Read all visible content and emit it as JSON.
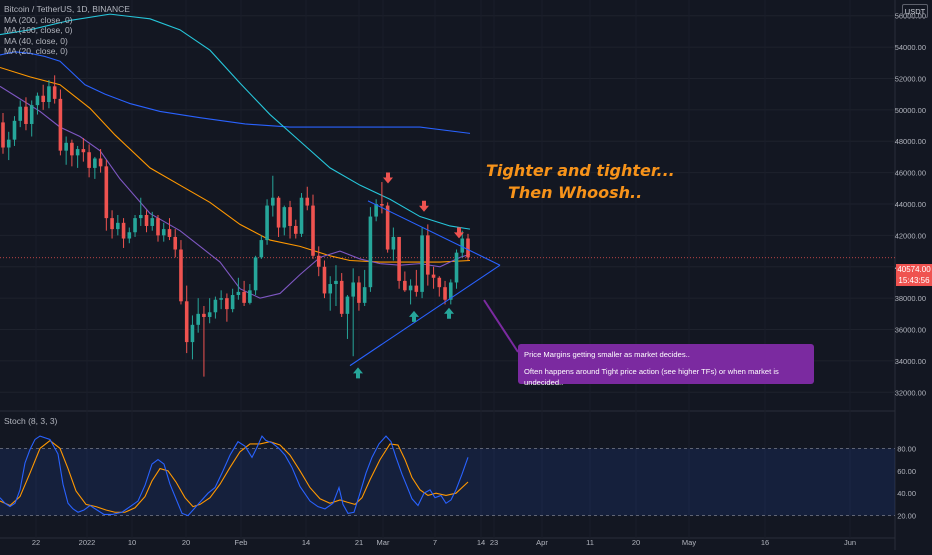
{
  "legend": {
    "symbol": "Bitcoin / TetherUS, 1D, BINANCE",
    "ma200": "MA (200, close, 0)",
    "ma100": "MA (100, close, 0)",
    "ma40": "MA (40, close, 0)",
    "ma20": "MA (20, close, 0)"
  },
  "currency_button": "USDT",
  "annotations": {
    "headline_line1": "Tighter and tighter...",
    "headline_line2": "Then Whoosh..",
    "note_line1": "Price Margins getting smaller as market decides..",
    "note_line2": "Often happens around Tight price action (see higher TFs) or when market is undecided.."
  },
  "last_price": {
    "value": "40574.00",
    "countdown": "15:43:56"
  },
  "stoch_label": "Stoch (8, 3, 3)",
  "colors": {
    "background": "#131722",
    "up": "#26a69a",
    "down": "#ef5350",
    "ma200": "#2962ff",
    "ma100": "#26c6da",
    "ma40": "#ff9800",
    "ma20": "#7e57c2",
    "stoch_k": "#2962ff",
    "stoch_d": "#ff9800",
    "trendline": "#2962ff",
    "note": "#7b2aa0",
    "headline": "#f7931a"
  },
  "chart_data": {
    "type": "candlestick",
    "title": "Bitcoin / TetherUS, 1D, BINANCE",
    "y_ticks": [
      32000,
      34000,
      36000,
      38000,
      40000,
      42000,
      44000,
      46000,
      48000,
      50000,
      52000,
      54000,
      56000
    ],
    "ylim": [
      31000,
      57000
    ],
    "x_ticks": [
      "22",
      "2022",
      "10",
      "20",
      "Feb",
      "14",
      "21",
      "Mar",
      "7",
      "14",
      "23",
      "Apr",
      "11",
      "20",
      "May",
      "16",
      "Jun"
    ],
    "candles_ohlc": [
      [
        49200,
        49800,
        47200,
        47600
      ],
      [
        47600,
        48600,
        46800,
        48100
      ],
      [
        48100,
        49600,
        47700,
        49300
      ],
      [
        49300,
        50600,
        48900,
        50200
      ],
      [
        50200,
        50800,
        48700,
        49100
      ],
      [
        49100,
        50600,
        48300,
        50300
      ],
      [
        50300,
        51100,
        49700,
        50900
      ],
      [
        50900,
        51600,
        50000,
        50500
      ],
      [
        50500,
        51900,
        50100,
        51500
      ],
      [
        51500,
        52200,
        50400,
        50700
      ],
      [
        50700,
        51300,
        47100,
        47400
      ],
      [
        47400,
        48300,
        46500,
        47900
      ],
      [
        47900,
        48100,
        46400,
        47100
      ],
      [
        47100,
        47700,
        46300,
        47500
      ],
      [
        47500,
        48200,
        46700,
        47300
      ],
      [
        47300,
        47800,
        45700,
        46300
      ],
      [
        46300,
        47000,
        45600,
        46900
      ],
      [
        46900,
        47500,
        46000,
        46400
      ],
      [
        46400,
        46800,
        42300,
        43100
      ],
      [
        43100,
        43600,
        41800,
        42400
      ],
      [
        42400,
        43300,
        42000,
        42800
      ],
      [
        42800,
        43100,
        41200,
        41800
      ],
      [
        41800,
        42500,
        41500,
        42200
      ],
      [
        42200,
        43300,
        41900,
        43100
      ],
      [
        43100,
        44400,
        42600,
        43300
      ],
      [
        43300,
        43600,
        42200,
        42600
      ],
      [
        42600,
        43500,
        42300,
        43100
      ],
      [
        43100,
        43300,
        41600,
        42000
      ],
      [
        42000,
        42800,
        41600,
        42400
      ],
      [
        42400,
        43100,
        41700,
        41900
      ],
      [
        41900,
        42400,
        40600,
        41100
      ],
      [
        41100,
        41700,
        37600,
        37800
      ],
      [
        37800,
        38800,
        34500,
        35200
      ],
      [
        35200,
        36900,
        34100,
        36300
      ],
      [
        36300,
        38000,
        35800,
        37000
      ],
      [
        37000,
        37500,
        33000,
        36800
      ],
      [
        36800,
        38000,
        36400,
        37100
      ],
      [
        37100,
        38100,
        36700,
        37900
      ],
      [
        37900,
        38500,
        37300,
        38000
      ],
      [
        38000,
        38300,
        36500,
        37300
      ],
      [
        37300,
        38600,
        37100,
        38200
      ],
      [
        38200,
        39300,
        37900,
        38400
      ],
      [
        38400,
        39100,
        37500,
        37700
      ],
      [
        37700,
        38900,
        37600,
        38500
      ],
      [
        38500,
        40700,
        38200,
        40600
      ],
      [
        40600,
        42000,
        40500,
        41700
      ],
      [
        41700,
        44300,
        41400,
        43900
      ],
      [
        43900,
        45800,
        43200,
        44400
      ],
      [
        44400,
        44500,
        41900,
        42500
      ],
      [
        42500,
        43900,
        42000,
        43800
      ],
      [
        43800,
        44200,
        41800,
        42600
      ],
      [
        42600,
        43000,
        41800,
        42100
      ],
      [
        42100,
        44700,
        41900,
        44400
      ],
      [
        44400,
        45100,
        43600,
        43900
      ],
      [
        43900,
        44600,
        40500,
        40700
      ],
      [
        40700,
        41300,
        39400,
        40000
      ],
      [
        40000,
        40400,
        38000,
        38300
      ],
      [
        38300,
        39400,
        37200,
        38900
      ],
      [
        38900,
        40100,
        37500,
        39100
      ],
      [
        39100,
        39600,
        36800,
        37000
      ],
      [
        37000,
        38200,
        35400,
        38100
      ],
      [
        38100,
        39900,
        34300,
        39000
      ],
      [
        39000,
        39400,
        37200,
        37700
      ],
      [
        37700,
        39800,
        37500,
        38700
      ],
      [
        38700,
        43800,
        38400,
        43200
      ],
      [
        43200,
        44300,
        42900,
        44000
      ],
      [
        44000,
        45400,
        43400,
        43900
      ],
      [
        43900,
        44100,
        40900,
        41100
      ],
      [
        41100,
        42500,
        40400,
        41900
      ],
      [
        41900,
        41900,
        38600,
        39100
      ],
      [
        39100,
        39700,
        38400,
        38500
      ],
      [
        38500,
        39200,
        37600,
        38800
      ],
      [
        38800,
        39800,
        38100,
        38400
      ],
      [
        38400,
        42500,
        38000,
        42000
      ],
      [
        42000,
        42700,
        38800,
        39500
      ],
      [
        39500,
        40000,
        38600,
        39300
      ],
      [
        39300,
        39400,
        38100,
        38700
      ],
      [
        38700,
        39100,
        37600,
        37900
      ],
      [
        37900,
        39200,
        37600,
        39000
      ],
      [
        39000,
        41100,
        38600,
        40900
      ],
      [
        40900,
        42300,
        40600,
        41800
      ],
      [
        41800,
        42100,
        40400,
        40600
      ]
    ],
    "ma200": [
      [
        0,
        53500
      ],
      [
        15,
        53700
      ],
      [
        30,
        53600
      ],
      [
        45,
        53400
      ],
      [
        60,
        53100
      ],
      [
        70,
        52500
      ],
      [
        85,
        51600
      ],
      [
        105,
        51000
      ],
      [
        130,
        50400
      ],
      [
        160,
        49900
      ],
      [
        200,
        49500
      ],
      [
        245,
        49100
      ],
      [
        290,
        48900
      ],
      [
        330,
        48900
      ],
      [
        380,
        48900
      ],
      [
        420,
        48900
      ],
      [
        470,
        48500
      ]
    ],
    "ma100": [
      [
        0,
        54800
      ],
      [
        30,
        55100
      ],
      [
        70,
        55700
      ],
      [
        110,
        56100
      ],
      [
        150,
        55800
      ],
      [
        180,
        55100
      ],
      [
        210,
        53800
      ],
      [
        240,
        51700
      ],
      [
        270,
        49700
      ],
      [
        300,
        48000
      ],
      [
        330,
        46300
      ],
      [
        360,
        45200
      ],
      [
        390,
        44300
      ],
      [
        420,
        43200
      ],
      [
        450,
        42600
      ],
      [
        470,
        42400
      ]
    ],
    "ma40": [
      [
        0,
        52700
      ],
      [
        30,
        52100
      ],
      [
        60,
        51600
      ],
      [
        90,
        50100
      ],
      [
        115,
        48400
      ],
      [
        150,
        46300
      ],
      [
        180,
        45200
      ],
      [
        210,
        44100
      ],
      [
        240,
        42700
      ],
      [
        270,
        41700
      ],
      [
        300,
        41300
      ],
      [
        330,
        40700
      ],
      [
        350,
        40400
      ],
      [
        380,
        40300
      ],
      [
        410,
        40300
      ],
      [
        440,
        40300
      ],
      [
        470,
        40400
      ]
    ],
    "ma20": [
      [
        0,
        51500
      ],
      [
        20,
        50700
      ],
      [
        40,
        49900
      ],
      [
        60,
        48900
      ],
      [
        80,
        48300
      ],
      [
        100,
        47400
      ],
      [
        120,
        45600
      ],
      [
        150,
        43400
      ],
      [
        180,
        42300
      ],
      [
        200,
        41300
      ],
      [
        220,
        40300
      ],
      [
        240,
        38600
      ],
      [
        260,
        38000
      ],
      [
        280,
        38300
      ],
      [
        300,
        39500
      ],
      [
        320,
        40600
      ],
      [
        340,
        41000
      ],
      [
        360,
        40500
      ],
      [
        380,
        40200
      ],
      [
        400,
        40100
      ],
      [
        420,
        40200
      ],
      [
        440,
        40000
      ],
      [
        460,
        40600
      ],
      [
        470,
        40800
      ]
    ],
    "stoch_k": [
      [
        0,
        36
      ],
      [
        5,
        31
      ],
      [
        10,
        28
      ],
      [
        15,
        31
      ],
      [
        20,
        43
      ],
      [
        25,
        67
      ],
      [
        30,
        79
      ],
      [
        35,
        88
      ],
      [
        40,
        91
      ],
      [
        50,
        88
      ],
      [
        58,
        75
      ],
      [
        63,
        48
      ],
      [
        68,
        31
      ],
      [
        73,
        26
      ],
      [
        78,
        23
      ],
      [
        84,
        25
      ],
      [
        90,
        29
      ],
      [
        97,
        25
      ],
      [
        104,
        21
      ],
      [
        112,
        21
      ],
      [
        122,
        23
      ],
      [
        130,
        28
      ],
      [
        138,
        33
      ],
      [
        145,
        47
      ],
      [
        152,
        66
      ],
      [
        158,
        70
      ],
      [
        164,
        66
      ],
      [
        170,
        48
      ],
      [
        176,
        35
      ],
      [
        182,
        22
      ],
      [
        188,
        20
      ],
      [
        193,
        25
      ],
      [
        200,
        32
      ],
      [
        208,
        40
      ],
      [
        215,
        45
      ],
      [
        222,
        58
      ],
      [
        230,
        74
      ],
      [
        238,
        86
      ],
      [
        245,
        82
      ],
      [
        252,
        72
      ],
      [
        257,
        81
      ],
      [
        262,
        91
      ],
      [
        266,
        87
      ],
      [
        272,
        85
      ],
      [
        279,
        80
      ],
      [
        285,
        74
      ],
      [
        292,
        63
      ],
      [
        300,
        46
      ],
      [
        310,
        33
      ],
      [
        318,
        28
      ],
      [
        325,
        26
      ],
      [
        333,
        31
      ],
      [
        339,
        45
      ],
      [
        343,
        30
      ],
      [
        348,
        22
      ],
      [
        354,
        23
      ],
      [
        360,
        40
      ],
      [
        366,
        58
      ],
      [
        372,
        72
      ],
      [
        379,
        84
      ],
      [
        386,
        91
      ],
      [
        391,
        86
      ],
      [
        396,
        72
      ],
      [
        402,
        57
      ],
      [
        407,
        46
      ],
      [
        412,
        35
      ],
      [
        418,
        29
      ],
      [
        424,
        40
      ],
      [
        430,
        43
      ],
      [
        435,
        36
      ],
      [
        441,
        38
      ],
      [
        446,
        31
      ],
      [
        451,
        34
      ],
      [
        456,
        43
      ],
      [
        462,
        57
      ],
      [
        468,
        72
      ]
    ],
    "stoch_d": [
      [
        0,
        33
      ],
      [
        10,
        29
      ],
      [
        20,
        37
      ],
      [
        30,
        58
      ],
      [
        40,
        80
      ],
      [
        50,
        87
      ],
      [
        60,
        80
      ],
      [
        68,
        62
      ],
      [
        76,
        42
      ],
      [
        86,
        30
      ],
      [
        96,
        28
      ],
      [
        106,
        25
      ],
      [
        115,
        23
      ],
      [
        125,
        23
      ],
      [
        135,
        27
      ],
      [
        145,
        37
      ],
      [
        152,
        51
      ],
      [
        160,
        62
      ],
      [
        168,
        60
      ],
      [
        176,
        50
      ],
      [
        185,
        36
      ],
      [
        193,
        28
      ],
      [
        200,
        30
      ],
      [
        210,
        36
      ],
      [
        220,
        48
      ],
      [
        230,
        63
      ],
      [
        240,
        77
      ],
      [
        250,
        84
      ],
      [
        260,
        84
      ],
      [
        270,
        86
      ],
      [
        280,
        83
      ],
      [
        290,
        74
      ],
      [
        300,
        60
      ],
      [
        310,
        45
      ],
      [
        320,
        35
      ],
      [
        330,
        31
      ],
      [
        340,
        34
      ],
      [
        347,
        32
      ],
      [
        355,
        30
      ],
      [
        362,
        36
      ],
      [
        370,
        52
      ],
      [
        380,
        70
      ],
      [
        390,
        84
      ],
      [
        398,
        83
      ],
      [
        405,
        70
      ],
      [
        412,
        54
      ],
      [
        420,
        43
      ],
      [
        428,
        38
      ],
      [
        436,
        40
      ],
      [
        446,
        38
      ],
      [
        456,
        40
      ],
      [
        468,
        50
      ]
    ],
    "stoch_ylim": [
      0,
      100
    ],
    "stoch_levels": [
      20,
      80
    ],
    "stoch_ticks": [
      20,
      40,
      60,
      80
    ],
    "trend_upper": [
      [
        368,
        44200
      ],
      [
        500,
        40100
      ]
    ],
    "trend_lower": [
      [
        350,
        33700
      ],
      [
        500,
        40100
      ]
    ],
    "arrows_down": [
      [
        388,
        45500
      ],
      [
        424,
        43700
      ],
      [
        459,
        42000
      ]
    ],
    "arrows_up": [
      [
        358,
        33400
      ],
      [
        414,
        37000
      ],
      [
        449,
        37200
      ]
    ],
    "last_price_line": 40574
  }
}
